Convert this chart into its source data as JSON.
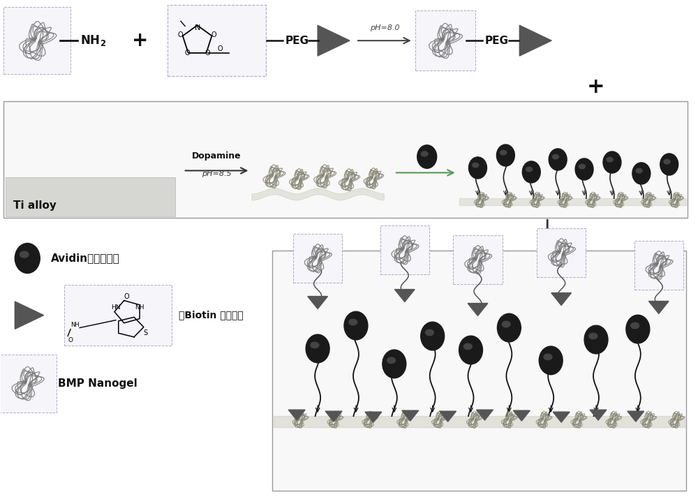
{
  "bg_color": "#ffffff",
  "dark": "#111111",
  "med_gray": "#555555",
  "light_gray": "#aaaaaa",
  "avidin_dark": "#1a1a1a",
  "avidin_mid": "#444444",
  "biotin_gray": "#555555",
  "nanogel_color": "#777777",
  "surface_fill": "#d8d8d0",
  "box_face": "#f8f8fc",
  "box_edge": "#aaaacc",
  "ti_face": "#d0d0cc",
  "outer_box_edge": "#aaaaaa",
  "arrow_green": "#559955",
  "text_NH2": "NH$_2$",
  "text_PEG": "PEG",
  "text_pH80": "pH=8.0",
  "text_plus": "+",
  "text_dopamine": "Dopamine",
  "text_pH85": "pH=8.5",
  "text_Ti": "Ti alloy",
  "text_avidin": "Avidin（亲和素）",
  "text_biotin": "（Biotin 生物素）",
  "text_nanogel": "BMP Nanogel"
}
